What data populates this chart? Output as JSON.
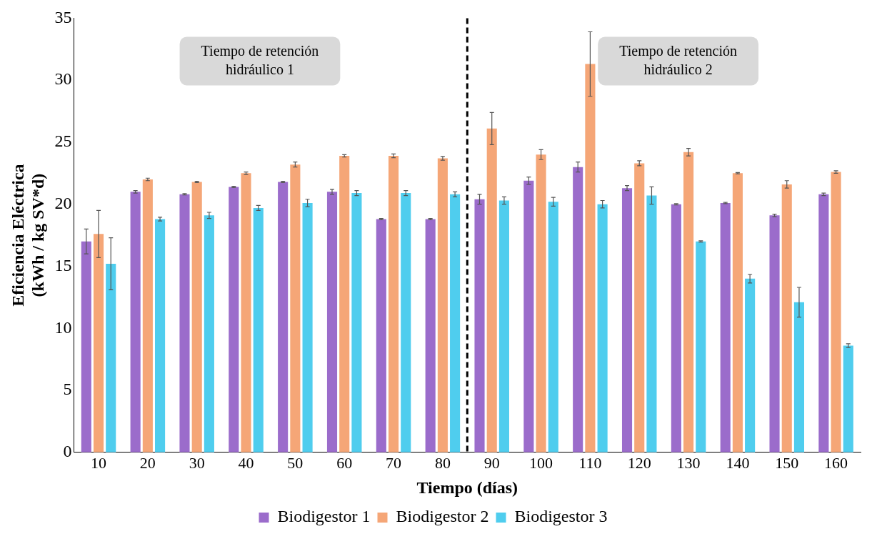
{
  "chart_data": {
    "type": "bar",
    "xlabel": "Tiempo (días)",
    "ylabel": "Eficiencia Eléctrica\n(kWh / kg SV*d)",
    "x": [
      10,
      20,
      30,
      40,
      50,
      60,
      70,
      80,
      90,
      100,
      110,
      120,
      130,
      140,
      150,
      160
    ],
    "xlim": [
      5,
      165
    ],
    "xticks": [
      10,
      20,
      30,
      40,
      50,
      60,
      70,
      80,
      90,
      100,
      110,
      120,
      130,
      140,
      150,
      160
    ],
    "ylim": [
      0,
      35
    ],
    "yticks": [
      0,
      5,
      10,
      15,
      20,
      25,
      30,
      35
    ],
    "grid": false,
    "legend": "bottom",
    "series": [
      {
        "name": "Biodigestor 1",
        "color": "#9b6ccb",
        "values": [
          17.0,
          21.0,
          20.8,
          21.4,
          21.8,
          21.0,
          18.8,
          18.8,
          20.4,
          21.9,
          23.0,
          21.3,
          20.0,
          20.1,
          19.1,
          20.8
        ],
        "errors": [
          1.0,
          0.1,
          0.05,
          0.05,
          0.05,
          0.2,
          0.05,
          0.05,
          0.4,
          0.3,
          0.4,
          0.2,
          0.05,
          0.05,
          0.1,
          0.1
        ]
      },
      {
        "name": "Biodigestor 2",
        "color": "#f5a677",
        "values": [
          17.6,
          22.0,
          21.8,
          22.5,
          23.2,
          23.9,
          23.9,
          23.7,
          26.1,
          24.0,
          31.3,
          23.3,
          24.2,
          22.5,
          21.6,
          22.6
        ],
        "errors": [
          1.9,
          0.1,
          0.05,
          0.1,
          0.2,
          0.1,
          0.15,
          0.15,
          1.3,
          0.4,
          2.6,
          0.2,
          0.3,
          0.05,
          0.3,
          0.1
        ]
      },
      {
        "name": "Biodigestor 3",
        "color": "#4fcdee",
        "values": [
          15.2,
          18.8,
          19.1,
          19.7,
          20.1,
          20.9,
          20.9,
          20.8,
          20.3,
          20.2,
          20.0,
          20.7,
          17.0,
          14.0,
          12.1,
          8.6
        ],
        "errors": [
          2.1,
          0.15,
          0.25,
          0.2,
          0.3,
          0.2,
          0.2,
          0.2,
          0.3,
          0.35,
          0.3,
          0.7,
          0.05,
          0.35,
          1.2,
          0.15
        ]
      }
    ],
    "ref_lines": [
      {
        "axis": "x",
        "value": 85,
        "color": "#000000",
        "line_style": "dashed"
      }
    ],
    "annotations": [
      "Tiempo de retención\nhidráulico 1",
      "Tiempo de retención\nhidráulico 2"
    ]
  }
}
